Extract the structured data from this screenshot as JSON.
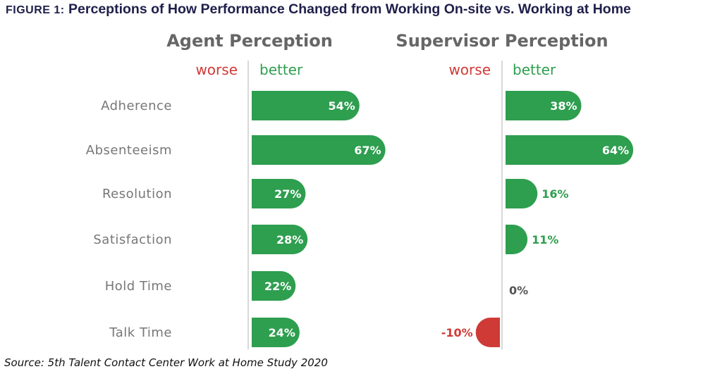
{
  "title": {
    "figure_label": "FIGURE 1:",
    "text": "Perceptions of How Performance Changed from Working On-site vs. Working at Home"
  },
  "source": "Source: 5th Talent Contact Center Work at Home Study 2020",
  "colors": {
    "better": "#2e9e4f",
    "worse": "#d03a36",
    "panel_title": "#666666",
    "category": "#777777",
    "zero_label": "#555555"
  },
  "chart_data": [
    {
      "type": "bar",
      "orientation": "horizontal",
      "title": "Agent Perception",
      "worse_label": "worse",
      "better_label": "better",
      "categories": [
        "Adherence",
        "Absenteeism",
        "Resolution",
        "Satisfaction",
        "Hold Time",
        "Talk Time"
      ],
      "values": [
        54,
        67,
        27,
        28,
        22,
        24
      ],
      "value_labels": [
        "54%",
        "67%",
        "27%",
        "28%",
        "22%",
        "24%"
      ],
      "unit": "%"
    },
    {
      "type": "bar",
      "orientation": "horizontal",
      "title": "Supervisor Perception",
      "worse_label": "worse",
      "better_label": "better",
      "categories": [
        "Adherence",
        "Absenteeism",
        "Resolution",
        "Satisfaction",
        "Hold Time",
        "Talk Time"
      ],
      "values": [
        38,
        64,
        16,
        11,
        0,
        -10
      ],
      "value_labels": [
        "38%",
        "64%",
        "16%",
        "11%",
        "0%",
        "-10%"
      ],
      "unit": "%"
    }
  ]
}
